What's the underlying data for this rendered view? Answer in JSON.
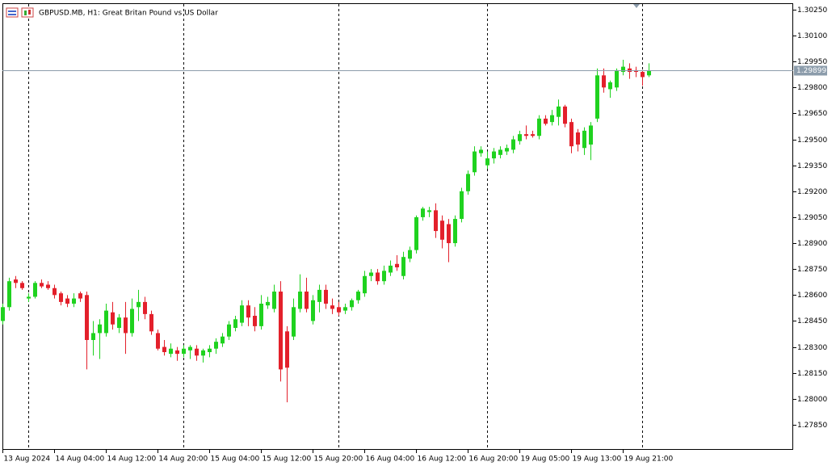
{
  "chart_data": {
    "type": "candlestick",
    "title": "GBPUSD.MB, H1:  Great Britan Pound vs US Dollar",
    "categories": [
      "13 Aug 2024",
      null,
      null,
      null,
      null,
      null,
      null,
      null,
      "14 Aug 04:00",
      null,
      null,
      null,
      null,
      null,
      null,
      null,
      "14 Aug 12:00",
      null,
      null,
      null,
      null,
      null,
      null,
      null,
      "14 Aug 20:00",
      null,
      null,
      null,
      null,
      null,
      null,
      null,
      "15 Aug 04:00",
      null,
      null,
      null,
      null,
      null,
      null,
      null,
      "15 Aug 12:00",
      null,
      null,
      null,
      null,
      null,
      null,
      null,
      "15 Aug 20:00",
      null,
      null,
      null,
      null,
      null,
      null,
      null,
      "16 Aug 04:00",
      null,
      null,
      null,
      null,
      null,
      null,
      null,
      "16 Aug 12:00",
      null,
      null,
      null,
      null,
      null,
      null,
      null,
      "16 Aug 20:00",
      null,
      null,
      null,
      null,
      null,
      null,
      null,
      "19 Aug 05:00",
      null,
      null,
      null,
      null,
      null,
      null,
      null,
      "19 Aug 13:00",
      null,
      null,
      null,
      null,
      null,
      null,
      null,
      "19 Aug 21:00",
      null,
      null,
      null,
      null
    ],
    "open": [
      1.2845,
      1.2853,
      1.2869,
      1.2867,
      1.2858,
      1.2859,
      1.2867,
      1.2866,
      1.2864,
      1.2861,
      1.2858,
      1.2855,
      1.2861,
      1.286,
      1.2834,
      1.2838,
      1.2838,
      1.285,
      1.2841,
      1.2847,
      1.2838,
      1.2853,
      1.2856,
      1.2849,
      1.2838,
      1.283,
      1.2826,
      1.2828,
      1.2826,
      1.2828,
      1.2829,
      1.2825,
      1.2827,
      1.2829,
      1.2832,
      1.2836,
      1.2841,
      1.2844,
      1.2854,
      1.2848,
      1.2842,
      1.2854,
      1.2852,
      1.2862,
      1.2839,
      1.2836,
      1.2852,
      1.2862,
      1.2845,
      1.2856,
      1.2863,
      1.2854,
      1.2853,
      1.2851,
      1.2853,
      1.2857,
      1.2861,
      1.2871,
      1.2873,
      1.2868,
      1.2873,
      1.2878,
      1.2871,
      1.2881,
      1.2886,
      1.2905,
      1.2908,
      1.2909,
      1.2903,
      1.2901,
      1.289,
      1.2904,
      1.292,
      1.2931,
      1.2942,
      1.2935,
      1.2939,
      1.2941,
      1.2943,
      1.2944,
      1.2949,
      1.2953,
      1.2953,
      1.2952,
      1.2962,
      1.296,
      1.2963,
      1.2969,
      1.296,
      1.2954,
      1.2945,
      1.2947,
      1.2962,
      1.2987,
      1.2979,
      1.298,
      1.2989,
      1.2991,
      1.299,
      1.2989,
      1.2987
    ],
    "high": [
      1.2855,
      1.287,
      1.2871,
      1.2868,
      1.2861,
      1.2868,
      1.2869,
      1.2868,
      1.2866,
      1.2862,
      1.286,
      1.2861,
      1.2862,
      1.2862,
      1.2845,
      1.2846,
      1.2855,
      1.2856,
      1.2849,
      1.2856,
      1.2858,
      1.2863,
      1.2859,
      1.2851,
      1.284,
      1.2834,
      1.2832,
      1.283,
      1.2831,
      1.2831,
      1.2831,
      1.2829,
      1.2831,
      1.2835,
      1.2838,
      1.2845,
      1.2848,
      1.2857,
      1.2857,
      1.2853,
      1.286,
      1.2859,
      1.2866,
      1.2868,
      1.2842,
      1.2858,
      1.2872,
      1.287,
      1.286,
      1.2866,
      1.2866,
      1.2858,
      1.2856,
      1.2855,
      1.2858,
      1.2863,
      1.2874,
      1.2875,
      1.2875,
      1.2877,
      1.288,
      1.2883,
      1.2885,
      1.2888,
      1.2906,
      1.2911,
      1.2911,
      1.2913,
      1.2906,
      1.2904,
      1.2906,
      1.2922,
      1.2932,
      1.2946,
      1.2946,
      1.2943,
      1.2945,
      1.2946,
      1.2947,
      1.2952,
      1.2955,
      1.2958,
      1.2955,
      1.2964,
      1.2964,
      1.2967,
      1.2973,
      1.297,
      1.2962,
      1.2956,
      1.2957,
      1.296,
      1.2991,
      1.2991,
      1.2984,
      1.2991,
      1.2996,
      1.2994,
      1.2992,
      1.299,
      1.2994
    ],
    "low": [
      1.2843,
      1.2851,
      1.2864,
      1.2863,
      1.2856,
      1.2858,
      1.2864,
      1.2863,
      1.2858,
      1.2854,
      1.2853,
      1.2853,
      1.2856,
      1.2817,
      1.2825,
      1.2823,
      1.2836,
      1.284,
      1.2838,
      1.2826,
      1.2836,
      1.2845,
      1.2846,
      1.2837,
      1.2828,
      1.2825,
      1.2824,
      1.2822,
      1.2824,
      1.2823,
      1.2822,
      1.2821,
      1.2824,
      1.2826,
      1.283,
      1.2834,
      1.2839,
      1.2842,
      1.2842,
      1.2839,
      1.284,
      1.2852,
      1.285,
      1.281,
      1.2798,
      1.2834,
      1.285,
      1.285,
      1.2843,
      1.285,
      1.2852,
      1.2849,
      1.2848,
      1.2849,
      1.2851,
      1.2855,
      1.2859,
      1.2868,
      1.2866,
      1.2866,
      1.2871,
      1.2874,
      1.2869,
      1.2879,
      1.2884,
      1.2903,
      1.2905,
      1.2893,
      1.2887,
      1.2879,
      1.2888,
      1.2902,
      1.2918,
      1.2929,
      1.294,
      1.2933,
      1.2936,
      1.2939,
      1.2941,
      1.2942,
      1.2947,
      1.295,
      1.2951,
      1.295,
      1.2958,
      1.2958,
      1.2958,
      1.2957,
      1.2942,
      1.2943,
      1.2941,
      1.2938,
      1.296,
      1.2977,
      1.2974,
      1.2978,
      1.2987,
      1.2985,
      1.2986,
      1.2981,
      1.2986
    ],
    "close": [
      1.2853,
      1.2868,
      1.2867,
      1.2864,
      1.2859,
      1.2867,
      1.2865,
      1.2864,
      1.286,
      1.2856,
      1.2855,
      1.2858,
      1.2858,
      1.2834,
      1.2838,
      1.2843,
      1.2851,
      1.2843,
      1.2847,
      1.2838,
      1.2852,
      1.2856,
      1.2849,
      1.2839,
      1.2829,
      1.2827,
      1.2829,
      1.2826,
      1.2829,
      1.283,
      1.2825,
      1.2828,
      1.2829,
      1.2833,
      1.2836,
      1.2843,
      1.2846,
      1.2854,
      1.2847,
      1.2842,
      1.2855,
      1.2856,
      1.2862,
      1.2817,
      1.2818,
      1.2853,
      1.2862,
      1.2852,
      1.2857,
      1.2863,
      1.2855,
      1.2852,
      1.285,
      1.2853,
      1.2857,
      1.2862,
      1.2871,
      1.2873,
      1.2868,
      1.2874,
      1.2877,
      1.2876,
      1.2882,
      1.2886,
      1.2905,
      1.291,
      1.2909,
      1.2897,
      1.2892,
      1.289,
      1.2904,
      1.292,
      1.293,
      1.2943,
      1.2944,
      1.2939,
      1.2943,
      1.2944,
      1.2945,
      1.295,
      1.2953,
      1.2952,
      1.2952,
      1.2962,
      1.2959,
      1.2964,
      1.2969,
      1.2959,
      1.2946,
      1.2947,
      1.2955,
      1.2958,
      1.2987,
      1.298,
      1.2983,
      1.299,
      1.2992,
      1.2989,
      1.2989,
      1.2986,
      1.29899
    ],
    "ylim": [
      1.27705,
      1.30287
    ],
    "yticks": [
      {
        "value": 1.3025,
        "label": "1.30250"
      },
      {
        "value": 1.301,
        "label": "1.30100"
      },
      {
        "value": 1.2995,
        "label": "1.29950"
      },
      {
        "value": 1.298,
        "label": "1.29800"
      },
      {
        "value": 1.2965,
        "label": "1.29650"
      },
      {
        "value": 1.295,
        "label": "1.29500"
      },
      {
        "value": 1.2935,
        "label": "1.29350"
      },
      {
        "value": 1.292,
        "label": "1.29200"
      },
      {
        "value": 1.2905,
        "label": "1.29050"
      },
      {
        "value": 1.289,
        "label": "1.28900"
      },
      {
        "value": 1.2875,
        "label": "1.28750"
      },
      {
        "value": 1.286,
        "label": "1.28600"
      },
      {
        "value": 1.2845,
        "label": "1.28450"
      },
      {
        "value": 1.283,
        "label": "1.28300"
      },
      {
        "value": 1.2815,
        "label": "1.28150"
      },
      {
        "value": 1.28,
        "label": "1.28000"
      },
      {
        "value": 1.2785,
        "label": "1.27850"
      }
    ],
    "last_price": 1.29899,
    "up_color": "#1fd21f",
    "down_color": "#e3202b",
    "last_price_color": "#8c9cab"
  }
}
